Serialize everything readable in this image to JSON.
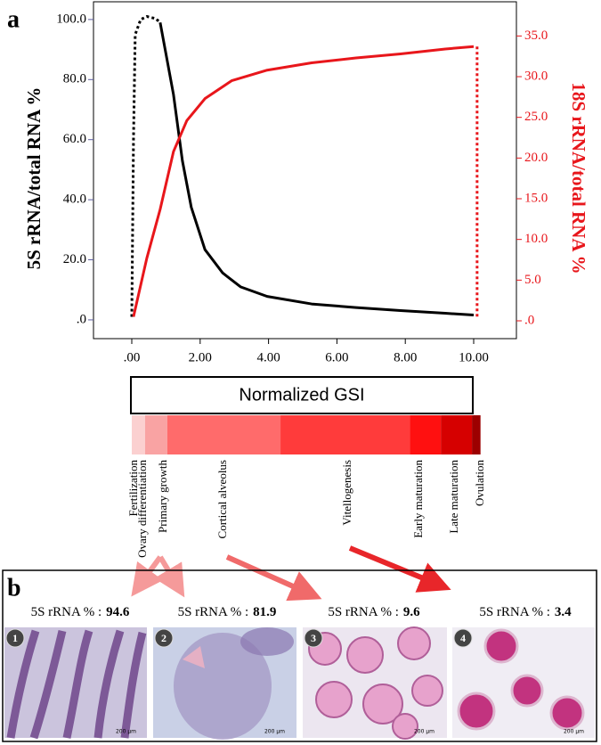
{
  "panel_a_label": "a",
  "chart_data": {
    "type": "line",
    "y_label": "5S rRNA/total RNA %",
    "y2_label": "18S rRNA/total RNA %",
    "xlim": [
      -1.12,
      11.25
    ],
    "ylim": [
      -6.25,
      105.9
    ],
    "y2lim": [
      -2.19,
      39.2
    ],
    "xticks": [
      {
        "value": 0,
        "label": ".00"
      },
      {
        "value": 2,
        "label": "2.00"
      },
      {
        "value": 4,
        "label": "4.00"
      },
      {
        "value": 6,
        "label": "6.00"
      },
      {
        "value": 8,
        "label": "8.00"
      },
      {
        "value": 10,
        "label": "10.00"
      }
    ],
    "yticks": [
      {
        "value": 0,
        "label": ".0"
      },
      {
        "value": 20,
        "label": "20.0"
      },
      {
        "value": 40,
        "label": "40.0"
      },
      {
        "value": 60,
        "label": "60.0"
      },
      {
        "value": 80,
        "label": "80.0"
      },
      {
        "value": 100,
        "label": "100.0"
      }
    ],
    "y2ticks": [
      {
        "value": 0,
        "label": ".0"
      },
      {
        "value": 5,
        "label": "5.0"
      },
      {
        "value": 10,
        "label": "10.0"
      },
      {
        "value": 15,
        "label": "15.0"
      },
      {
        "value": 20,
        "label": "20.0"
      },
      {
        "value": 25,
        "label": "25.0"
      },
      {
        "value": 30,
        "label": "30.0"
      },
      {
        "value": 35,
        "label": "35.0"
      }
    ],
    "series": [
      {
        "color": "#000000",
        "style": "dotted",
        "x": [
          0,
          0.05,
          0.1,
          0.26,
          0.44,
          0.7,
          0.83
        ],
        "values": [
          1,
          60,
          95,
          100,
          101,
          100.3,
          99
        ]
      },
      {
        "color": "#000000",
        "style": "solid",
        "x": [
          0.83,
          1.22,
          1.48,
          1.74,
          2.14,
          2.66,
          3.18,
          3.96,
          5.26,
          6.56,
          7.86,
          9.17,
          10
        ],
        "values": [
          99,
          75,
          53,
          37.5,
          23.4,
          15.6,
          11,
          7.8,
          5.3,
          4.1,
          3.1,
          2.2,
          1.6
        ]
      },
      {
        "color": "#e8161b",
        "style": "solid",
        "axis": "y2",
        "x": [
          0.05,
          0.44,
          0.83,
          1.22,
          1.61,
          2.14,
          2.92,
          3.96,
          5.26,
          6.56,
          7.86,
          9.17,
          10
        ],
        "values": [
          0.5,
          7.7,
          13.7,
          20.8,
          24.6,
          27.3,
          29.5,
          30.8,
          31.7,
          32.3,
          32.8,
          33.4,
          33.7
        ]
      },
      {
        "color": "#e8161b",
        "style": "dotted",
        "axis": "y2",
        "x": [
          10.1,
          10.1
        ],
        "values": [
          33.7,
          0.3
        ]
      }
    ]
  },
  "gsi_bar": {
    "title": "Normalized GSI",
    "segments": [
      {
        "color": "#fbd0d0",
        "gsi": [
          0,
          0.39
        ]
      },
      {
        "color": "#f9a3a3",
        "gsi": [
          0.39,
          1.04
        ]
      },
      {
        "color": "#ff6b6b",
        "gsi": [
          1.04,
          4.35
        ]
      },
      {
        "color": "#ff3b3b",
        "gsi": [
          4.35,
          8.13
        ]
      },
      {
        "color": "#ff1010",
        "gsi": [
          8.13,
          9.04
        ]
      },
      {
        "color": "#d60000",
        "gsi": [
          9.04,
          9.95
        ]
      },
      {
        "color": "#9c0000",
        "gsi": [
          9.95,
          10.2
        ]
      }
    ],
    "stages": [
      "Fertilization",
      "Ovary differentiation",
      "Primary growth",
      "Cortical alveolus",
      "Vitellogenesis",
      "Early maturation",
      "Late maturation",
      "Ovulation"
    ]
  },
  "panel_b": {
    "label": "b",
    "panels": [
      {
        "number": "1",
        "caption": "5S rRNA % :",
        "value": 94.6,
        "scale": "200 µm"
      },
      {
        "number": "2",
        "caption": "5S rRNA % :",
        "value": 81.9,
        "scale": "200 µm"
      },
      {
        "number": "3",
        "caption": "5S rRNA % :",
        "value": 9.6,
        "scale": "200 µm"
      },
      {
        "number": "4",
        "caption": "5S rRNA % :",
        "value": 3.4,
        "scale": "200 µm"
      }
    ]
  }
}
